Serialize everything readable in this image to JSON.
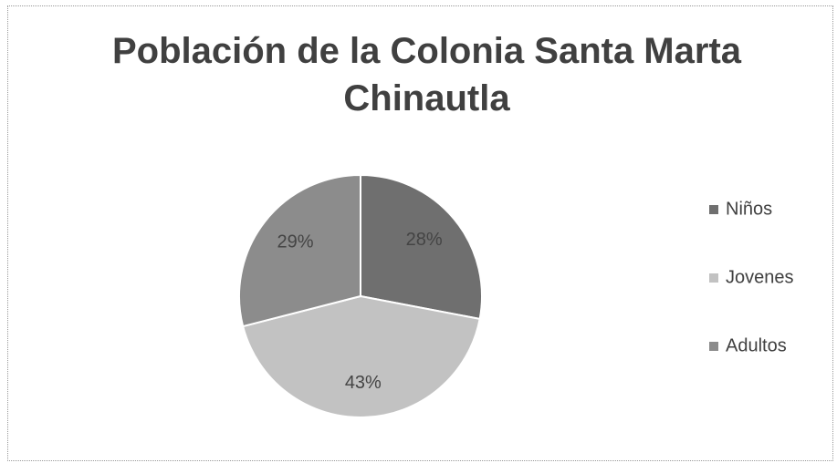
{
  "chart_data": {
    "type": "pie",
    "title": "Población de la Colonia Santa Marta Chinautla",
    "categories": [
      "Niños",
      "Jovenes",
      "Adultos"
    ],
    "values": [
      28,
      43,
      29
    ],
    "value_labels": [
      "28%",
      "43%",
      "29%"
    ],
    "colors": [
      "#6f6f6f",
      "#c2c2c2",
      "#8c8c8c"
    ],
    "legend": "right"
  }
}
